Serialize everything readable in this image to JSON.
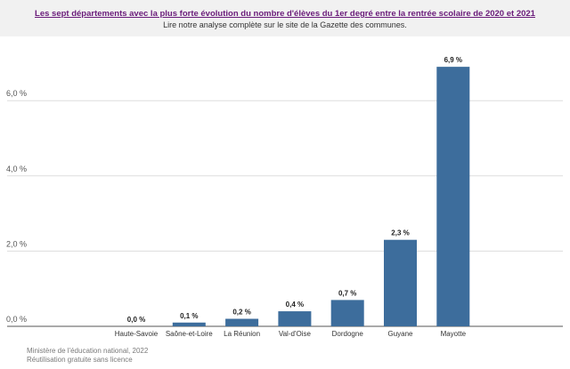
{
  "header": {
    "title": "Les sept départements avec la plus forte évolution du nombre d'élèves du 1er degré entre la rentrée scolaire de 2020 et 2021",
    "subtitle": "Lire notre analyse complète sur le site de la Gazette des communes."
  },
  "source": {
    "line1": "Ministère de l'éducation national, 2022",
    "line2": "Réutilisation gratuite sans licence"
  },
  "colors": {
    "bar": "#3d6d9c",
    "grid": "#dddddd",
    "axis": "#555555"
  },
  "chart_data": {
    "type": "bar",
    "categories": [
      "Haute-Savoie",
      "Saône-et-Loire",
      "La Réunion",
      "Val-d'Oise",
      "Dordogne",
      "Guyane",
      "Mayotte"
    ],
    "values": [
      0.0,
      0.1,
      0.2,
      0.4,
      0.7,
      2.3,
      6.9
    ],
    "value_labels": [
      "0,0 %",
      "0,1 %",
      "0,2 %",
      "0,4 %",
      "0,7 %",
      "2,3 %",
      "6,9 %"
    ],
    "yticks": [
      0,
      2,
      4,
      6
    ],
    "ytick_labels": [
      "0,0 %",
      "2,0 %",
      "4,0 %",
      "6,0 %"
    ],
    "ylim": [
      0,
      7.5
    ],
    "grid": true
  }
}
